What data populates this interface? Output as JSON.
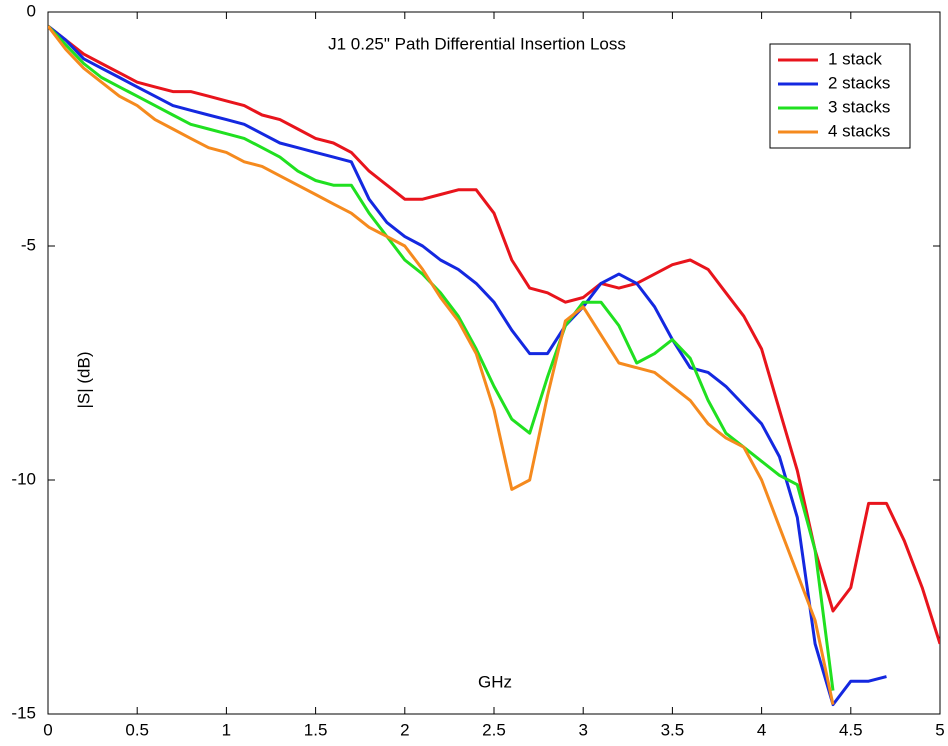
{
  "chart_data": {
    "type": "line",
    "title": "J1 0.25\" Path Differential Insertion Loss",
    "x_label": "GHz",
    "y_label": "|S| (dB)",
    "x": [
      0,
      0.1,
      0.2,
      0.3,
      0.4,
      0.5,
      0.6,
      0.7,
      0.8,
      0.9,
      1,
      1.1,
      1.2,
      1.3,
      1.4,
      1.5,
      1.6,
      1.7,
      1.8,
      1.9,
      2,
      2.1,
      2.2,
      2.3,
      2.4,
      2.5,
      2.6,
      2.7,
      2.8,
      2.9,
      3,
      3.1,
      3.2,
      3.3,
      3.4,
      3.5,
      3.6,
      3.7,
      3.8,
      3.9,
      4,
      4.1,
      4.2,
      4.3,
      4.4,
      4.5,
      4.6,
      4.7,
      4.8,
      4.9,
      5
    ],
    "series": [
      {
        "name": "1 stack",
        "color": "#e8141c",
        "values": [
          -0.3,
          -0.6,
          -0.9,
          -1.1,
          -1.3,
          -1.5,
          -1.6,
          -1.7,
          -1.7,
          -1.8,
          -1.9,
          -2.0,
          -2.2,
          -2.3,
          -2.5,
          -2.7,
          -2.8,
          -3.0,
          -3.4,
          -3.7,
          -4.0,
          -4.0,
          -3.9,
          -3.8,
          -3.8,
          -4.3,
          -5.3,
          -5.9,
          -6.0,
          -6.2,
          -6.1,
          -5.8,
          -5.9,
          -5.8,
          -5.6,
          -5.4,
          -5.3,
          -5.5,
          -6.0,
          -6.5,
          -7.2,
          -8.5,
          -9.8,
          -11.5,
          -12.8,
          -12.3,
          -10.5,
          -10.5,
          -11.3,
          -12.3,
          -13.5
        ]
      },
      {
        "name": "2 stacks",
        "color": "#1428e0",
        "values": [
          -0.3,
          -0.6,
          -1.0,
          -1.2,
          -1.4,
          -1.6,
          -1.8,
          -2.0,
          -2.1,
          -2.2,
          -2.3,
          -2.4,
          -2.6,
          -2.8,
          -2.9,
          -3.0,
          -3.1,
          -3.2,
          -4.0,
          -4.5,
          -4.8,
          -5.0,
          -5.3,
          -5.5,
          -5.8,
          -6.2,
          -6.8,
          -7.3,
          -7.3,
          -6.7,
          -6.3,
          -5.8,
          -5.6,
          -5.8,
          -6.3,
          -7.0,
          -7.6,
          -7.7,
          -8.0,
          -8.4,
          -8.8,
          -9.5,
          -10.8,
          -13.5,
          -14.8,
          -14.3,
          -14.3,
          -14.2,
          null,
          null,
          null
        ]
      },
      {
        "name": "3 stacks",
        "color": "#20e020",
        "values": [
          -0.3,
          -0.7,
          -1.1,
          -1.4,
          -1.6,
          -1.8,
          -2.0,
          -2.2,
          -2.4,
          -2.5,
          -2.6,
          -2.7,
          -2.9,
          -3.1,
          -3.4,
          -3.6,
          -3.7,
          -3.7,
          -4.3,
          -4.8,
          -5.3,
          -5.6,
          -6.0,
          -6.5,
          -7.2,
          -8.0,
          -8.7,
          -9.0,
          -7.8,
          -6.7,
          -6.2,
          -6.2,
          -6.7,
          -7.5,
          -7.3,
          -7.0,
          -7.4,
          -8.3,
          -9.0,
          -9.3,
          -9.6,
          -9.9,
          -10.1,
          -11.5,
          -14.5,
          null,
          null,
          null,
          null,
          null,
          null
        ]
      },
      {
        "name": "4 stacks",
        "color": "#f58a1e",
        "values": [
          -0.3,
          -0.8,
          -1.2,
          -1.5,
          -1.8,
          -2.0,
          -2.3,
          -2.5,
          -2.7,
          -2.9,
          -3.0,
          -3.2,
          -3.3,
          -3.5,
          -3.7,
          -3.9,
          -4.1,
          -4.3,
          -4.6,
          -4.8,
          -5.0,
          -5.5,
          -6.1,
          -6.6,
          -7.3,
          -8.5,
          -10.2,
          -10.0,
          -8.2,
          -6.6,
          -6.3,
          -6.9,
          -7.5,
          -7.6,
          -7.7,
          -8.0,
          -8.3,
          -8.8,
          -9.1,
          -9.3,
          -10.0,
          -11.0,
          -12.0,
          -13.0,
          -14.8,
          null,
          null,
          null,
          null,
          null,
          null
        ]
      }
    ],
    "xlim": [
      0,
      5
    ],
    "xticks": [
      0,
      0.5,
      1,
      1.5,
      2,
      2.5,
      3,
      3.5,
      4,
      4.5,
      5
    ],
    "ylim": [
      -15,
      0
    ],
    "yticks": [
      0,
      -5,
      -10,
      -15
    ],
    "legend": "upper right"
  }
}
